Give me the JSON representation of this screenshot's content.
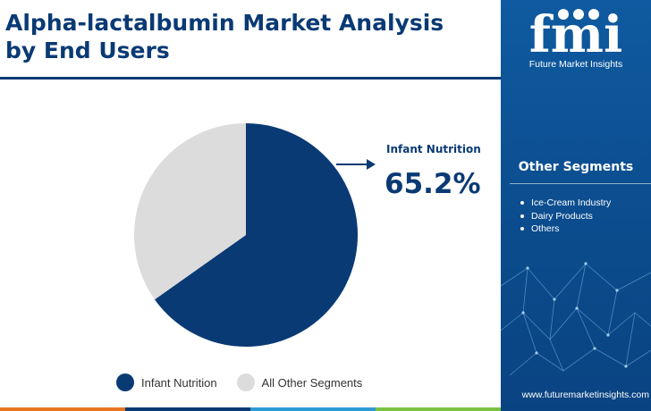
{
  "title": "Alpha-lactalbumin Market Analysis by End Users",
  "chart_data": {
    "type": "pie",
    "slices": [
      {
        "label": "Infant Nutrition",
        "value": 65.2,
        "color": "#0a3a74"
      },
      {
        "label": "All Other Segments",
        "value": 34.8,
        "color": "#dcdcdc"
      }
    ],
    "callout": {
      "label": "Infant Nutrition",
      "value_text": "65.2%"
    },
    "legend": [
      "Infant Nutrition",
      "All Other Segments"
    ],
    "legend_position": "bottom"
  },
  "sidebar": {
    "logo_text": "fmi",
    "logo_subtitle": "Future Market Insights",
    "segments_title": "Other Segments",
    "segments": [
      "Ice-Cream Industry",
      "Dairy Products",
      "Others"
    ],
    "website": "www.futuremarketinsights.com"
  },
  "colors": {
    "primary": "#0a3a74",
    "sidebar_bg": "#0b4b8c",
    "other_slice": "#dcdcdc",
    "bottom_bar": [
      "#e87722",
      "#0a3a74",
      "#2e9bd6",
      "#7cc242"
    ]
  }
}
